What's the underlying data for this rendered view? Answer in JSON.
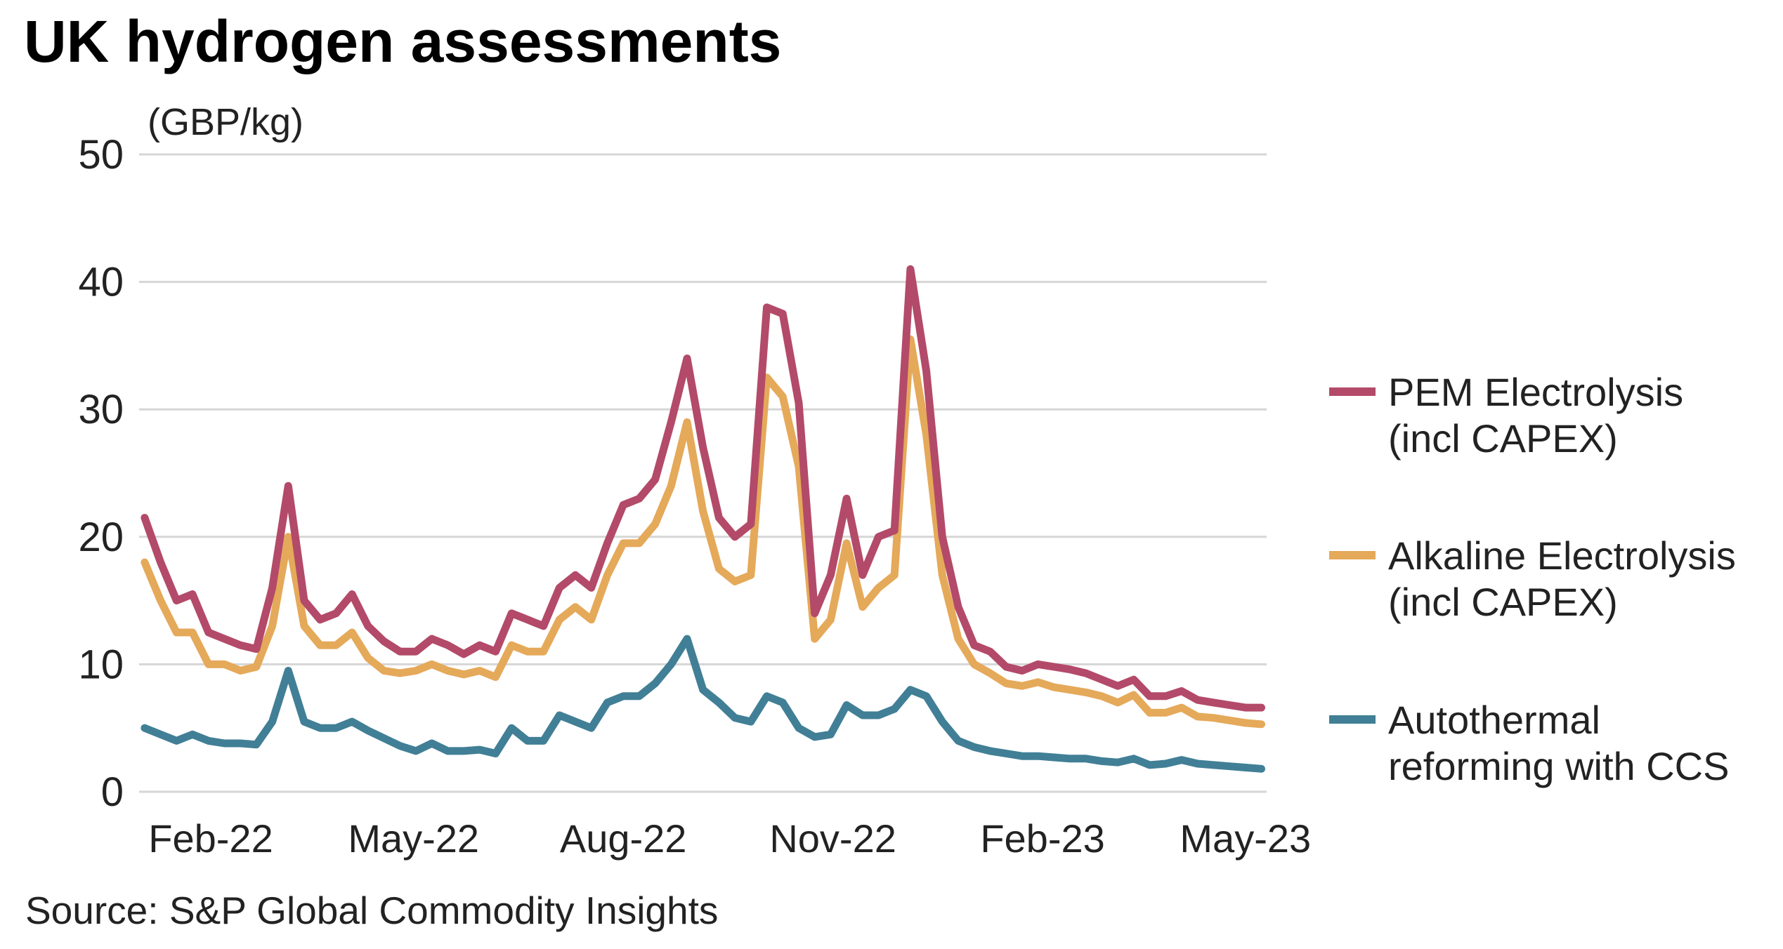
{
  "chart_data": {
    "type": "line",
    "title": "UK hydrogen assessments",
    "ylabel": "(GBP/kg)",
    "xlabel": "",
    "ylim": [
      0,
      50
    ],
    "yticks": [
      "0",
      "10",
      "20",
      "30",
      "40",
      "50"
    ],
    "xticks": [
      {
        "date": "2022-02-01",
        "label": "Feb-22"
      },
      {
        "date": "2022-05-01",
        "label": "May-22"
      },
      {
        "date": "2022-08-01",
        "label": "Aug-22"
      },
      {
        "date": "2022-11-01",
        "label": "Nov-22"
      },
      {
        "date": "2023-02-01",
        "label": "Feb-23"
      },
      {
        "date": "2023-05-01",
        "label": "May-23"
      }
    ],
    "grid": true,
    "legend_position": "right",
    "source": "Source: S&P Global Commodity Insights",
    "x": [
      "2022-01-03",
      "2022-01-10",
      "2022-01-17",
      "2022-01-24",
      "2022-01-31",
      "2022-02-07",
      "2022-02-14",
      "2022-02-21",
      "2022-02-28",
      "2022-03-07",
      "2022-03-14",
      "2022-03-21",
      "2022-03-28",
      "2022-04-04",
      "2022-04-11",
      "2022-04-18",
      "2022-04-25",
      "2022-05-02",
      "2022-05-09",
      "2022-05-16",
      "2022-05-23",
      "2022-05-30",
      "2022-06-06",
      "2022-06-13",
      "2022-06-20",
      "2022-06-27",
      "2022-07-04",
      "2022-07-11",
      "2022-07-18",
      "2022-07-25",
      "2022-08-01",
      "2022-08-08",
      "2022-08-15",
      "2022-08-22",
      "2022-08-29",
      "2022-09-05",
      "2022-09-12",
      "2022-09-19",
      "2022-09-26",
      "2022-10-03",
      "2022-10-10",
      "2022-10-17",
      "2022-10-24",
      "2022-10-31",
      "2022-11-07",
      "2022-11-14",
      "2022-11-21",
      "2022-11-28",
      "2022-12-05",
      "2022-12-12",
      "2022-12-19",
      "2022-12-26",
      "2023-01-02",
      "2023-01-09",
      "2023-01-16",
      "2023-01-23",
      "2023-01-30",
      "2023-02-06",
      "2023-02-13",
      "2023-02-20",
      "2023-02-27",
      "2023-03-06",
      "2023-03-13",
      "2023-03-20",
      "2023-03-27",
      "2023-04-03",
      "2023-04-10",
      "2023-04-17",
      "2023-04-24",
      "2023-05-01",
      "2023-05-08"
    ],
    "series": [
      {
        "name": "PEM Electrolysis (incl CAPEX)",
        "name_lines": [
          "PEM Electrolysis",
          "(incl CAPEX)"
        ],
        "color": "#b34a69",
        "values": [
          21.5,
          18,
          15,
          15.5,
          12.5,
          12,
          11.5,
          11.2,
          16,
          24,
          15,
          13.5,
          14,
          15.5,
          13,
          11.8,
          11,
          11,
          12,
          11.5,
          10.8,
          11.5,
          11,
          14,
          13.5,
          13,
          16,
          17,
          16,
          19.5,
          22.5,
          23,
          24.5,
          29,
          34,
          27,
          21.5,
          20,
          21,
          38,
          37.5,
          30.5,
          14,
          17,
          23,
          17,
          20,
          20.5,
          41,
          33,
          20,
          14.5,
          11.5,
          11,
          9.8,
          9.5,
          10,
          9.8,
          9.6,
          9.3,
          8.8,
          8.3,
          8.8,
          7.5,
          7.5,
          7.9,
          7.2,
          7.0,
          6.8,
          6.6,
          6.6
        ]
      },
      {
        "name": "Alkaline Electrolysis (incl CAPEX)",
        "name_lines": [
          "Alkaline Electrolysis",
          "(incl CAPEX)"
        ],
        "color": "#e5a95a",
        "values": [
          18,
          15,
          12.5,
          12.5,
          10,
          10,
          9.5,
          9.8,
          13,
          20,
          13,
          11.5,
          11.5,
          12.5,
          10.5,
          9.5,
          9.3,
          9.5,
          10,
          9.5,
          9.2,
          9.5,
          9,
          11.5,
          11,
          11,
          13.5,
          14.5,
          13.5,
          17,
          19.5,
          19.5,
          21,
          24,
          29,
          22,
          17.5,
          16.5,
          17,
          32.5,
          31,
          25.5,
          12,
          13.5,
          19.5,
          14.5,
          16,
          17,
          35.5,
          28,
          17,
          12,
          10,
          9.3,
          8.5,
          8.3,
          8.6,
          8.2,
          8,
          7.8,
          7.5,
          7,
          7.6,
          6.2,
          6.2,
          6.6,
          5.9,
          5.8,
          5.6,
          5.4,
          5.3
        ]
      },
      {
        "name": "Autothermal reforming with CCS",
        "name_lines": [
          "Autothermal",
          "reforming with CCS"
        ],
        "color": "#417f96",
        "values": [
          5,
          4.5,
          4,
          4.5,
          4,
          3.8,
          3.8,
          3.7,
          5.5,
          9.5,
          5.5,
          5,
          5,
          5.5,
          4.8,
          4.2,
          3.6,
          3.2,
          3.8,
          3.2,
          3.2,
          3.3,
          3,
          5,
          4,
          4,
          6,
          5.5,
          5,
          7,
          7.5,
          7.5,
          8.5,
          10,
          12,
          8,
          7,
          5.8,
          5.5,
          7.5,
          7,
          5,
          4.3,
          4.5,
          6.8,
          6,
          6,
          6.5,
          8,
          7.5,
          5.5,
          4,
          3.5,
          3.2,
          3,
          2.8,
          2.8,
          2.7,
          2.6,
          2.6,
          2.4,
          2.3,
          2.6,
          2.1,
          2.2,
          2.5,
          2.2,
          2.1,
          2.0,
          1.9,
          1.8
        ]
      }
    ]
  }
}
